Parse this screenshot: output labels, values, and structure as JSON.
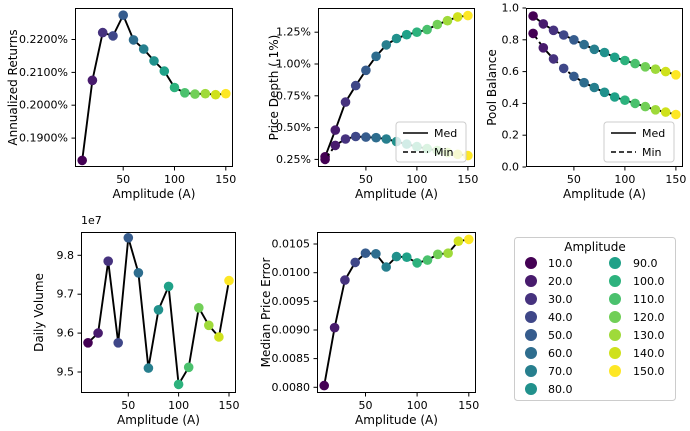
{
  "figure": {
    "background": "#ffffff",
    "line_color": "#000000",
    "spine_color": "#000000",
    "legend_border_color": "#cccccc",
    "legend_fill_color": "#ffffff"
  },
  "palette": {
    "viridis_15": [
      "#440154",
      "#481b6d",
      "#46327e",
      "#3f4788",
      "#365c8d",
      "#2e6d8e",
      "#277f8e",
      "#21918c",
      "#1fa188",
      "#2db27d",
      "#4ac16d",
      "#71cf57",
      "#9fda3a",
      "#cfe11c",
      "#fde725"
    ]
  },
  "amplitude_values": [
    10,
    20,
    30,
    40,
    50,
    60,
    70,
    80,
    90,
    100,
    110,
    120,
    130,
    140,
    150
  ],
  "chart_data": [
    {
      "id": "annualized-returns",
      "type": "line",
      "xlabel": "Amplitude (A)",
      "ylabel": "Annualized Returns",
      "x": [
        10,
        20,
        30,
        40,
        50,
        60,
        70,
        80,
        90,
        100,
        110,
        120,
        130,
        140,
        150
      ],
      "xlim": [
        3,
        157
      ],
      "ylim": [
        0.1812,
        0.2296
      ],
      "xticks": [
        50,
        100,
        150
      ],
      "xtick_labels": [
        "50",
        "100",
        "150"
      ],
      "yticks": [
        0.19,
        0.2,
        0.21,
        0.22
      ],
      "ytick_labels": [
        "0.1900%",
        "0.2000%",
        "0.2100%",
        "0.2200%"
      ],
      "offset_text": null,
      "legend": null,
      "series": [
        {
          "name": "Med",
          "dashed": false,
          "values": [
            0.1832,
            0.2076,
            0.2221,
            0.2211,
            0.2274,
            0.2199,
            0.2171,
            0.2135,
            0.2104,
            0.2054,
            0.2038,
            0.2034,
            0.2035,
            0.2032,
            0.2035
          ]
        }
      ]
    },
    {
      "id": "price-depth",
      "type": "line",
      "xlabel": "Amplitude (A)",
      "ylabel": "Price Depth (.1%)",
      "x": [
        10,
        20,
        30,
        40,
        50,
        60,
        70,
        80,
        90,
        100,
        110,
        120,
        130,
        140,
        150
      ],
      "xlim": [
        3,
        157
      ],
      "ylim": [
        0.19,
        1.44
      ],
      "xticks": [
        50,
        100,
        150
      ],
      "xtick_labels": [
        "50",
        "100",
        "150"
      ],
      "yticks": [
        0.25,
        0.5,
        0.75,
        1.0,
        1.25
      ],
      "ytick_labels": [
        "0.25%",
        "0.50%",
        "0.75%",
        "1.00%",
        "1.25%"
      ],
      "offset_text": null,
      "legend": {
        "entries": [
          {
            "label": "Med",
            "dashed": false
          },
          {
            "label": "Min",
            "dashed": true
          }
        ]
      },
      "series": [
        {
          "name": "Med",
          "dashed": false,
          "values": [
            0.27,
            0.48,
            0.7,
            0.83,
            0.95,
            1.06,
            1.15,
            1.2,
            1.23,
            1.25,
            1.27,
            1.31,
            1.34,
            1.37,
            1.38
          ]
        },
        {
          "name": "Min",
          "dashed": true,
          "values": [
            0.25,
            0.36,
            0.41,
            0.43,
            0.425,
            0.42,
            0.41,
            0.39,
            0.37,
            0.35,
            0.335,
            0.32,
            0.305,
            0.29,
            0.28
          ]
        }
      ]
    },
    {
      "id": "pool-balance",
      "type": "line",
      "xlabel": "Amplitude (A)",
      "ylabel": "Pool Balance",
      "x": [
        10,
        20,
        30,
        40,
        50,
        60,
        70,
        80,
        90,
        100,
        110,
        120,
        130,
        140,
        150
      ],
      "xlim": [
        3,
        157
      ],
      "ylim": [
        0.0,
        1.0
      ],
      "xticks": [
        50,
        100,
        150
      ],
      "xtick_labels": [
        "50",
        "100",
        "150"
      ],
      "yticks": [
        0.0,
        0.2,
        0.4,
        0.6,
        0.8,
        1.0
      ],
      "ytick_labels": [
        "0.0",
        "0.2",
        "0.4",
        "0.6",
        "0.8",
        "1.0"
      ],
      "offset_text": null,
      "legend": {
        "entries": [
          {
            "label": "Med",
            "dashed": false
          },
          {
            "label": "Min",
            "dashed": true
          }
        ]
      },
      "series": [
        {
          "name": "Med",
          "dashed": false,
          "values": [
            0.95,
            0.9,
            0.86,
            0.83,
            0.8,
            0.77,
            0.74,
            0.72,
            0.69,
            0.67,
            0.65,
            0.63,
            0.615,
            0.6,
            0.58
          ]
        },
        {
          "name": "Min",
          "dashed": true,
          "values": [
            0.84,
            0.75,
            0.68,
            0.62,
            0.57,
            0.53,
            0.5,
            0.47,
            0.44,
            0.42,
            0.4,
            0.38,
            0.36,
            0.345,
            0.33
          ]
        }
      ]
    },
    {
      "id": "daily-volume",
      "type": "line",
      "xlabel": "Amplitude (A)",
      "ylabel": "Daily Volume",
      "x": [
        10,
        20,
        30,
        40,
        50,
        60,
        70,
        80,
        90,
        100,
        110,
        120,
        130,
        140,
        150
      ],
      "xlim": [
        3,
        157
      ],
      "ylim": [
        9.446,
        9.86
      ],
      "xticks": [
        50,
        100,
        150
      ],
      "xtick_labels": [
        "50",
        "100",
        "150"
      ],
      "yticks": [
        9.5,
        9.6,
        9.7,
        9.8
      ],
      "ytick_labels": [
        "9.5",
        "9.6",
        "9.7",
        "9.8"
      ],
      "offset_text": "1e7",
      "legend": null,
      "series": [
        {
          "name": "Med",
          "dashed": false,
          "values": [
            9.575,
            9.6,
            9.785,
            9.575,
            9.845,
            9.755,
            9.51,
            9.66,
            9.72,
            9.468,
            9.512,
            9.665,
            9.62,
            9.59,
            9.735
          ]
        }
      ]
    },
    {
      "id": "median-price-error",
      "type": "line",
      "xlabel": "Amplitude (A)",
      "ylabel": "Median Price Error",
      "x": [
        10,
        20,
        30,
        40,
        50,
        60,
        70,
        80,
        90,
        100,
        110,
        120,
        130,
        140,
        150
      ],
      "xlim": [
        3,
        157
      ],
      "ylim": [
        0.0079,
        0.01071
      ],
      "xticks": [
        50,
        100,
        150
      ],
      "xtick_labels": [
        "50",
        "100",
        "150"
      ],
      "yticks": [
        0.008,
        0.0085,
        0.009,
        0.0095,
        0.01,
        0.0105
      ],
      "ytick_labels": [
        "0.0080",
        "0.0085",
        "0.0090",
        "0.0095",
        "0.0100",
        "0.0105"
      ],
      "offset_text": null,
      "legend": null,
      "series": [
        {
          "name": "Med",
          "dashed": false,
          "values": [
            0.00803,
            0.00904,
            0.00987,
            0.01018,
            0.01034,
            0.01033,
            0.0101,
            0.01028,
            0.01027,
            0.01017,
            0.01022,
            0.01032,
            0.01034,
            0.01055,
            0.01058
          ]
        }
      ]
    }
  ],
  "legend_panel": {
    "title": "Amplitude",
    "labels": [
      "10.0",
      "20.0",
      "30.0",
      "40.0",
      "50.0",
      "60.0",
      "70.0",
      "80.0",
      "90.0",
      "100.0",
      "110.0",
      "120.0",
      "130.0",
      "140.0",
      "150.0"
    ]
  }
}
